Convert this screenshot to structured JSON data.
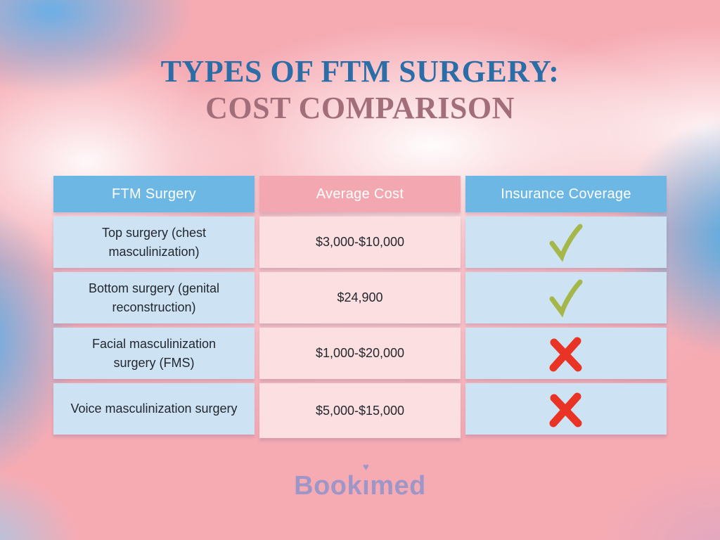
{
  "title": {
    "line1": "TYPES OF FTM SURGERY:",
    "line2": "COST COMPARISON"
  },
  "table": {
    "headers": [
      "FTM Surgery",
      "Average Cost",
      "Insurance Coverage"
    ],
    "rows": [
      {
        "surgery": "Top surgery (chest masculinization)",
        "cost": "$3,000-$10,000",
        "insurance_covered": true
      },
      {
        "surgery": "Bottom surgery (genital reconstruction)",
        "cost": "$24,900",
        "insurance_covered": true
      },
      {
        "surgery": "Facial masculinization surgery (FMS)",
        "cost": "$1,000-$20,000",
        "insurance_covered": false
      },
      {
        "surgery": "Voice masculinization surgery",
        "cost": "$5,000-$15,000",
        "insurance_covered": false
      }
    ]
  },
  "chart_data": {
    "type": "table",
    "title": "Types of FTM Surgery: Cost Comparison",
    "columns": [
      "FTM Surgery",
      "Average Cost",
      "Insurance Coverage"
    ],
    "rows": [
      [
        "Top surgery (chest masculinization)",
        "$3,000-$10,000",
        "covered"
      ],
      [
        "Bottom surgery (genital reconstruction)",
        "$24,900",
        "covered"
      ],
      [
        "Facial masculinization surgery (FMS)",
        "$1,000-$20,000",
        "not covered"
      ],
      [
        "Voice masculinization surgery",
        "$5,000-$15,000",
        "not covered"
      ]
    ]
  },
  "logo": {
    "name": "Bookimed",
    "text_before_i": "Book",
    "dotless_i": "ı",
    "heart": "♥",
    "text_after_i": "med"
  },
  "colors": {
    "title_blue": "#2b6da7",
    "title_mauve": "#a26e7a",
    "header_blue": "#6db7e4",
    "header_pink": "#f3a7b0",
    "cell_blue": "#cde3f4",
    "cell_pink": "#fcdfe1",
    "text_dark": "#24272e",
    "check_green": "#a4b748",
    "cross_red": "#e93425",
    "logo_purple": "#9e96c7"
  }
}
